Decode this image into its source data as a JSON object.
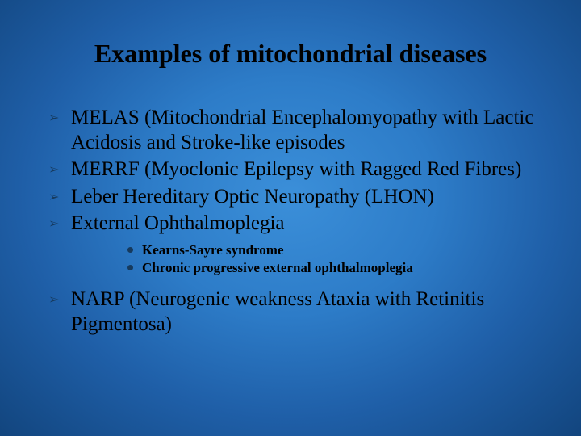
{
  "slide": {
    "background": {
      "gradient_center": "#3b8fd9",
      "gradient_mid": "#2d7cc8",
      "gradient_outer": "#1f5fa8",
      "gradient_edge": "#12457e"
    },
    "title": {
      "text": "Examples of mitochondrial diseases",
      "color": "#000000",
      "font_size_pt": 24,
      "font_weight": "bold",
      "font_family": "Times New Roman"
    },
    "bullets": {
      "level1_marker_color": "#163a5d",
      "level2_marker_color": "#163a5d",
      "level1_font_size_pt": 19,
      "level2_font_size_pt": 13,
      "items": [
        {
          "text": "MELAS (Mitochondrial Encephalomyopathy with Lactic Acidosis and Stroke-like episodes"
        },
        {
          "text": "MERRF (Myoclonic Epilepsy with Ragged Red Fibres)"
        },
        {
          "text": "Leber Hereditary Optic Neuropathy (LHON)"
        },
        {
          "text": "External Ophthalmoplegia",
          "subitems": [
            {
              "text": "Kearns-Sayre syndrome"
            },
            {
              "text": "Chronic progressive external ophthalmoplegia"
            }
          ]
        },
        {
          "text": "NARP (Neurogenic weakness Ataxia with Retinitis Pigmentosa)"
        }
      ]
    }
  }
}
